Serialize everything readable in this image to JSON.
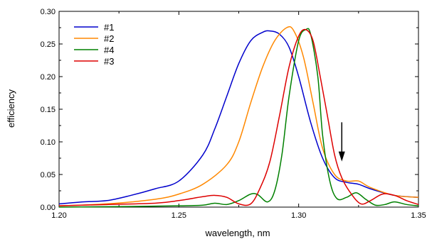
{
  "chart_data": {
    "type": "line",
    "xlabel": "wavelength, nm",
    "ylabel": "efficiency",
    "xlim": [
      1.2,
      1.35
    ],
    "ylim": [
      0,
      0.3
    ],
    "xticks": [
      "1.20",
      "1.25",
      "1.30",
      "1.35"
    ],
    "yticks": [
      "0.00",
      "0.05",
      "0.10",
      "0.15",
      "0.20",
      "0.25",
      "0.30"
    ],
    "grid": false,
    "legend_position": "top-left",
    "series": [
      {
        "name": "#1",
        "color": "#0000cc",
        "x": [
          1.2,
          1.21,
          1.22,
          1.23,
          1.24,
          1.25,
          1.26,
          1.265,
          1.27,
          1.275,
          1.28,
          1.285,
          1.288,
          1.292,
          1.296,
          1.3,
          1.305,
          1.31,
          1.315,
          1.32,
          1.325,
          1.33,
          1.34,
          1.35
        ],
        "y": [
          0.005,
          0.008,
          0.01,
          0.018,
          0.028,
          0.04,
          0.08,
          0.12,
          0.17,
          0.22,
          0.255,
          0.268,
          0.27,
          0.265,
          0.245,
          0.2,
          0.13,
          0.075,
          0.045,
          0.038,
          0.035,
          0.028,
          0.018,
          0.015
        ]
      },
      {
        "name": "#2",
        "color": "#ff8800",
        "x": [
          1.2,
          1.22,
          1.24,
          1.25,
          1.26,
          1.27,
          1.275,
          1.28,
          1.285,
          1.29,
          1.295,
          1.298,
          1.302,
          1.306,
          1.31,
          1.315,
          1.32,
          1.325,
          1.33,
          1.34,
          1.35
        ],
        "y": [
          0.002,
          0.005,
          0.012,
          0.02,
          0.035,
          0.065,
          0.1,
          0.16,
          0.215,
          0.255,
          0.275,
          0.27,
          0.23,
          0.16,
          0.09,
          0.05,
          0.04,
          0.04,
          0.03,
          0.018,
          0.015
        ]
      },
      {
        "name": "#4",
        "color": "#008000",
        "x": [
          1.2,
          1.23,
          1.25,
          1.26,
          1.265,
          1.27,
          1.275,
          1.28,
          1.283,
          1.287,
          1.29,
          1.293,
          1.296,
          1.3,
          1.303,
          1.305,
          1.308,
          1.31,
          1.313,
          1.316,
          1.32,
          1.324,
          1.328,
          1.332,
          1.336,
          1.34,
          1.345,
          1.35
        ],
        "y": [
          0.0,
          0.001,
          0.002,
          0.003,
          0.006,
          0.004,
          0.01,
          0.02,
          0.019,
          0.008,
          0.025,
          0.08,
          0.17,
          0.255,
          0.272,
          0.265,
          0.2,
          0.11,
          0.04,
          0.013,
          0.015,
          0.022,
          0.012,
          0.003,
          0.004,
          0.008,
          0.004,
          0.002
        ]
      },
      {
        "name": "#3",
        "color": "#dd0000",
        "x": [
          1.2,
          1.22,
          1.24,
          1.25,
          1.26,
          1.265,
          1.27,
          1.275,
          1.28,
          1.284,
          1.288,
          1.292,
          1.296,
          1.3,
          1.303,
          1.306,
          1.309,
          1.312,
          1.315,
          1.318,
          1.322,
          1.326,
          1.33,
          1.335,
          1.34,
          1.345,
          1.35
        ],
        "y": [
          0.002,
          0.004,
          0.006,
          0.01,
          0.016,
          0.018,
          0.015,
          0.005,
          0.005,
          0.03,
          0.07,
          0.14,
          0.215,
          0.262,
          0.272,
          0.255,
          0.2,
          0.14,
          0.08,
          0.045,
          0.02,
          0.005,
          0.01,
          0.02,
          0.018,
          0.01,
          0.004
        ]
      }
    ],
    "annotations": [
      {
        "type": "arrow",
        "direction": "down",
        "x": 1.318,
        "y_from": 0.13,
        "y_to": 0.07
      }
    ]
  }
}
